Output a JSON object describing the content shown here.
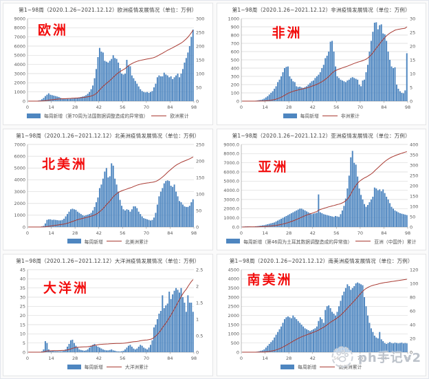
{
  "colors": {
    "bar": "#4e86c0",
    "line": "#a93a32",
    "annotation": "#f20d0d",
    "grid": "#d9d9d9",
    "axis": "#9b9b9b",
    "tick_text": "#595959",
    "watermark_text": "#bcc2ca"
  },
  "watermark": {
    "icon": "paw-logo-icon",
    "text": "ph手记v2"
  },
  "chart_data": [
    {
      "type": "bar+line",
      "title": "第1~98周（2020.1.26~2021.12.12）欧洲疫情发展情况（单位：万例）",
      "annotation": "欧洲",
      "legend_bar": "每周新增（第70周为法国数据调整造成的异常值）",
      "legend_line": "欧洲累计",
      "x_label": "周",
      "x_ticks": [
        0,
        14,
        28,
        42,
        56,
        70,
        84,
        98
      ],
      "left_axis": {
        "min": 0,
        "max": 9000,
        "step": 1000,
        "decimals": 0
      },
      "right_axis": {
        "min": 0,
        "max": 300,
        "step": 50
      },
      "cumulative_final": 258,
      "weekly": [
        0,
        0,
        0,
        0,
        10,
        30,
        60,
        100,
        200,
        350,
        550,
        700,
        850,
        700,
        650,
        600,
        550,
        500,
        450,
        350,
        300,
        280,
        260,
        250,
        250,
        260,
        280,
        300,
        320,
        350,
        400,
        450,
        500,
        550,
        650,
        800,
        1000,
        1300,
        1700,
        2500,
        3500,
        4800,
        5800,
        5400,
        5300,
        4400,
        4300,
        4200,
        4400,
        4600,
        5000,
        4700,
        4600,
        4200,
        3600,
        3000,
        2900,
        3000,
        4500,
        3900,
        3800,
        2800,
        2500,
        2200,
        1900,
        1600,
        1300,
        1100,
        1000,
        950,
        1000,
        900,
        1000,
        1100,
        1500,
        1900,
        2600,
        2800,
        2700,
        2700,
        3100,
        2900,
        2800,
        2600,
        2700,
        2400,
        2600,
        2800,
        3000,
        2600,
        3000,
        3500,
        4200,
        4700,
        5300,
        6000,
        7000,
        7800
      ]
    },
    {
      "type": "bar+line",
      "title": "第1~98周（2020.1.26~2021.12.12）非洲疫情发展情况（单位：万例）",
      "annotation": "非洲",
      "legend_bar": "每周新增",
      "legend_line": "非洲累计",
      "x_label": "周",
      "x_ticks": [
        0,
        14,
        28,
        42,
        56,
        70,
        84,
        98
      ],
      "left_axis": {
        "min": 0,
        "max": 1000,
        "step": 100,
        "decimals": 0
      },
      "right_axis": {
        "min": 0,
        "max": 30,
        "step": 5
      },
      "cumulative_final": 27,
      "weekly": [
        0,
        0,
        0,
        0,
        0,
        1,
        2,
        3,
        5,
        8,
        12,
        15,
        20,
        30,
        45,
        60,
        80,
        100,
        120,
        150,
        180,
        230,
        260,
        300,
        350,
        400,
        415,
        420,
        300,
        270,
        240,
        230,
        180,
        170,
        175,
        165,
        160,
        170,
        180,
        200,
        220,
        240,
        250,
        280,
        300,
        320,
        350,
        400,
        440,
        520,
        550,
        600,
        720,
        730,
        600,
        420,
        300,
        280,
        260,
        250,
        240,
        230,
        250,
        260,
        280,
        290,
        280,
        270,
        260,
        200,
        180,
        250,
        260,
        350,
        440,
        600,
        730,
        840,
        950,
        955,
        870,
        920,
        930,
        820,
        810,
        730,
        600,
        500,
        420,
        400,
        410,
        200,
        150,
        120,
        100,
        95,
        130,
        580
      ]
    },
    {
      "type": "bar+line",
      "title": "第1~98周（2020.1.26~2021.12.12）北美洲疫情发展情况（单位：万例）",
      "annotation": "北美洲",
      "legend_bar": "每周新增",
      "legend_line": "北美洲累计",
      "x_label": "周",
      "x_ticks": [
        0,
        14,
        28,
        42,
        56,
        70,
        84,
        98
      ],
      "left_axis": {
        "min": 0,
        "max": 7000,
        "step": 1000,
        "decimals": 0
      },
      "right_axis": {
        "min": 0,
        "max": 250,
        "step": 50
      },
      "cumulative_final": 212,
      "weekly": [
        0,
        0,
        0,
        0,
        0,
        5,
        10,
        20,
        50,
        100,
        300,
        600,
        650,
        650,
        600,
        620,
        600,
        580,
        560,
        560,
        600,
        700,
        900,
        1100,
        1300,
        1500,
        1550,
        1500,
        1450,
        1300,
        1200,
        1100,
        1000,
        950,
        1000,
        1050,
        1100,
        1200,
        1400,
        1700,
        2100,
        2500,
        3300,
        3600,
        4100,
        4700,
        5000,
        4200,
        4300,
        5400,
        5200,
        4100,
        3600,
        3000,
        2300,
        1800,
        1500,
        1400,
        1500,
        1450,
        1300,
        1500,
        1750,
        1750,
        1600,
        1300,
        1100,
        900,
        750,
        700,
        650,
        600,
        550,
        600,
        800,
        1200,
        1900,
        2600,
        3000,
        3300,
        3700,
        3900,
        3950,
        3900,
        3500,
        3400,
        3600,
        3000,
        2600,
        2200,
        2100,
        1900,
        1750,
        1700,
        1700,
        1800,
        2100,
        2350
      ]
    },
    {
      "type": "bar+line",
      "title": "第1~98周（2020.1.26~2021.12.12）亚洲疫情发展情况（单位：万例）",
      "annotation": "亚洲",
      "legend_bar": "每周新增（第46周为土耳其数据调整造成的异常值）",
      "legend_line": "亚洲（中国外）累计",
      "x_label": "周",
      "x_ticks": [
        0,
        14,
        28,
        42,
        56,
        70,
        84,
        98
      ],
      "left_axis": {
        "min": 0,
        "max": 9000,
        "step": 1000,
        "decimals": 1
      },
      "right_axis": {
        "min": 0,
        "max": 400,
        "step": 50
      },
      "cumulative_final": 365,
      "weekly": [
        30,
        50,
        60,
        70,
        60,
        50,
        40,
        50,
        80,
        100,
        120,
        150,
        180,
        200,
        250,
        300,
        350,
        400,
        450,
        500,
        600,
        700,
        800,
        900,
        1000,
        1100,
        1200,
        1300,
        1400,
        1500,
        1600,
        1700,
        1800,
        1900,
        2000,
        2000,
        1900,
        1800,
        1700,
        1600,
        1500,
        1400,
        1450,
        1500,
        1550,
        3550,
        1600,
        1500,
        1400,
        1350,
        1300,
        1250,
        1200,
        1150,
        1100,
        1200,
        1150,
        1100,
        1400,
        1800,
        2300,
        3100,
        4200,
        5600,
        7600,
        8300,
        7000,
        6800,
        5500,
        4200,
        3500,
        3000,
        2500,
        2200,
        2400,
        2700,
        3000,
        3300,
        4300,
        4200,
        4000,
        4100,
        3900,
        4100,
        3700,
        3300,
        3000,
        2600,
        2200,
        2000,
        1800,
        1700,
        1600,
        1500,
        1450,
        1400,
        1350,
        1300
      ]
    },
    {
      "type": "bar+line",
      "title": "第1~98周（2020.1.26~2021.12.12）大洋洲疫情发展情况（单位：万例）",
      "annotation": "大洋洲",
      "legend_bar": "每周新增",
      "legend_line": "大洋洲累计",
      "x_label": "周",
      "x_ticks": [
        0,
        14,
        28,
        42,
        56,
        70,
        84,
        98
      ],
      "left_axis": {
        "min": 0,
        "max": 45,
        "step": 5,
        "decimals": 0
      },
      "right_axis": {
        "min": 0,
        "max": 2.5,
        "step": 0.5
      },
      "cumulative_final": 2.2,
      "weekly": [
        0,
        0,
        0,
        0,
        0,
        0,
        0,
        0,
        0.5,
        1.5,
        6,
        5,
        1.5,
        0.8,
        0.7,
        0.6,
        0.5,
        0.5,
        0.5,
        0.5,
        0.6,
        0.8,
        1.5,
        3,
        4.5,
        6.5,
        6.8,
        5,
        3.5,
        2.5,
        1.5,
        1.2,
        1,
        0.8,
        1,
        1.5,
        2.5,
        3.5,
        4,
        4.5,
        3.5,
        3,
        2.5,
        2,
        1.5,
        1.2,
        1,
        1,
        1.2,
        1.5,
        1,
        0.8,
        0.5,
        0.4,
        0.4,
        0.5,
        0.8,
        1.5,
        2.5,
        3.5,
        4,
        3,
        2,
        1.5,
        2,
        3,
        4,
        3.5,
        2.5,
        2,
        1.5,
        2.5,
        4,
        6.5,
        13.5,
        15,
        18,
        21,
        22.5,
        31,
        24,
        25.5,
        26.5,
        33,
        29,
        31.5,
        33.5,
        35,
        34,
        32.5,
        35,
        30,
        27,
        22,
        31,
        27,
        27,
        22
      ]
    },
    {
      "type": "bar+line",
      "title": "第1~98周（2020.1.26~2021.12.12）南美洲疫情发展情况（单位：万例）",
      "annotation": "南美洲",
      "legend_bar": "每周新增",
      "legend_line": "南美洲累计",
      "x_label": "周",
      "x_ticks": [
        0,
        14,
        28,
        42,
        56,
        70,
        84,
        98
      ],
      "left_axis": {
        "min": 0,
        "max": 4500,
        "step": 500,
        "decimals": 0
      },
      "right_axis": {
        "min": 0,
        "max": 120,
        "step": 20
      },
      "cumulative_final": 106,
      "weekly": [
        0,
        0,
        0,
        0,
        0,
        5,
        10,
        15,
        20,
        30,
        50,
        80,
        100,
        150,
        250,
        350,
        450,
        550,
        650,
        800,
        950,
        1100,
        1250,
        1400,
        1600,
        1800,
        1900,
        1950,
        1900,
        1850,
        2000,
        1900,
        1800,
        1700,
        1600,
        1500,
        1400,
        1300,
        1250,
        1200,
        1150,
        1200,
        1250,
        1300,
        1400,
        1700,
        1900,
        1800,
        1600,
        2300,
        2500,
        2550,
        2400,
        2200,
        2100,
        2000,
        2200,
        2500,
        2800,
        3100,
        3300,
        3500,
        3700,
        3600,
        3400,
        3500,
        3600,
        3750,
        3800,
        3750,
        3700,
        3650,
        3000,
        2500,
        2000,
        1600,
        1300,
        1100,
        900,
        800,
        750,
        1100,
        700,
        600,
        500,
        450,
        500,
        550,
        500,
        480,
        520,
        500,
        480,
        500,
        520,
        480,
        500,
        480
      ]
    }
  ]
}
